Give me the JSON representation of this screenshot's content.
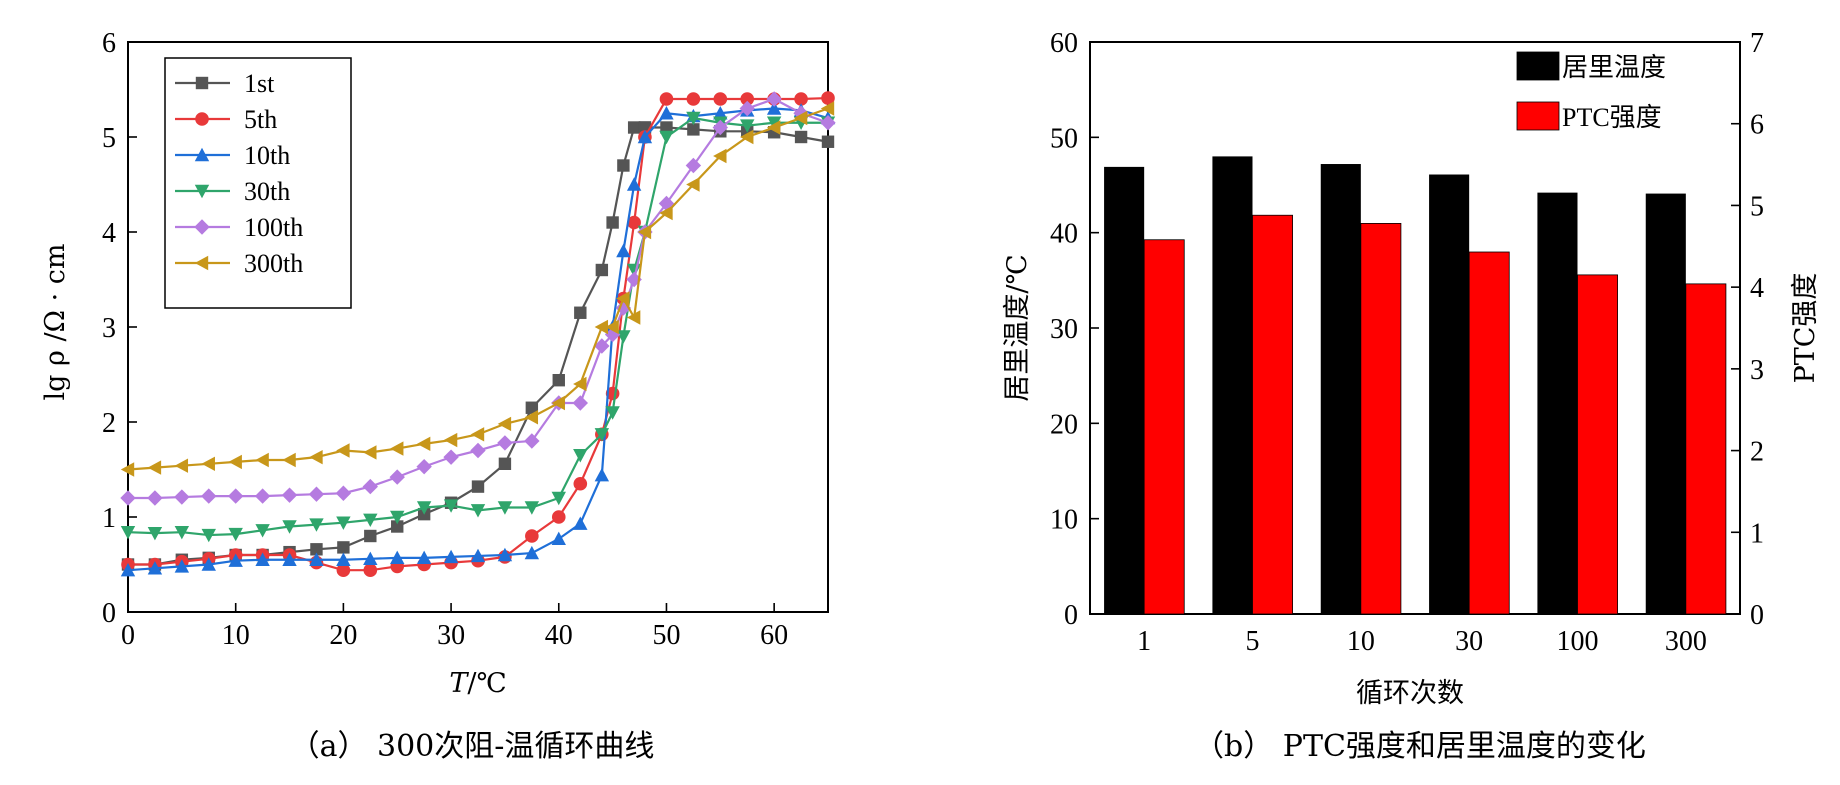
{
  "chart_data": [
    {
      "type": "line",
      "ylabel": "lg ρ /Ω · cm",
      "xlabel_var": "T",
      "xlabel_unit": "/℃",
      "xlim": [
        0,
        65
      ],
      "ylim": [
        0,
        6
      ],
      "xticks": [
        0,
        10,
        20,
        30,
        40,
        50,
        60
      ],
      "yticks": [
        0,
        1,
        2,
        3,
        4,
        5,
        6
      ],
      "legend_position": "top-left",
      "caption": "（a） 300次阻-温循环曲线",
      "series": [
        {
          "name": "1st",
          "color": "#555555",
          "marker": "square",
          "x": [
            0,
            2.5,
            5,
            7.5,
            10,
            12.5,
            15,
            17.5,
            20,
            22.5,
            25,
            27.5,
            30,
            32.5,
            35,
            37.5,
            40,
            42,
            44,
            45,
            46,
            47,
            48
          ],
          "y": [
            0.5,
            0.5,
            0.55,
            0.57,
            0.6,
            0.6,
            0.63,
            0.66,
            0.68,
            0.8,
            0.9,
            1.03,
            1.15,
            1.32,
            1.56,
            2.15,
            2.44,
            3.15,
            3.6,
            4.1,
            4.7,
            5.1,
            5.1
          ],
          "x2": [
            48,
            50,
            52.5,
            55,
            57.5,
            60,
            62.5,
            65
          ],
          "y2": [
            5.1,
            5.1,
            5.08,
            5.06,
            5.06,
            5.05,
            5.0,
            4.95
          ]
        },
        {
          "name": "5th",
          "color": "#e8393a",
          "marker": "circle",
          "x": [
            0,
            2.5,
            5,
            7.5,
            10,
            12.5,
            15,
            17.5,
            20,
            22.5,
            25,
            27.5,
            30,
            32.5,
            35,
            37.5,
            40,
            42,
            44,
            45,
            46,
            47,
            48,
            50,
            52.5,
            55,
            57.5,
            60,
            62.5,
            65
          ],
          "y": [
            0.5,
            0.5,
            0.53,
            0.56,
            0.6,
            0.6,
            0.6,
            0.52,
            0.44,
            0.44,
            0.48,
            0.5,
            0.52,
            0.54,
            0.58,
            0.8,
            1.0,
            1.35,
            1.87,
            2.3,
            3.3,
            4.1,
            5.0,
            5.4,
            5.4,
            5.4,
            5.4,
            5.4,
            5.4,
            5.41
          ]
        },
        {
          "name": "10th",
          "color": "#1f6fd8",
          "marker": "triangle-up",
          "x": [
            0,
            2.5,
            5,
            7.5,
            10,
            12.5,
            15,
            17.5,
            20,
            22.5,
            25,
            27.5,
            30,
            32.5,
            35,
            37.5,
            40,
            42,
            44,
            45,
            46,
            47,
            48,
            50,
            52.5,
            55,
            57.5,
            60,
            62.5,
            65
          ],
          "y": [
            0.44,
            0.46,
            0.48,
            0.5,
            0.54,
            0.55,
            0.55,
            0.55,
            0.55,
            0.56,
            0.57,
            0.57,
            0.58,
            0.59,
            0.6,
            0.62,
            0.77,
            0.93,
            1.44,
            3.0,
            3.8,
            4.5,
            5.0,
            5.25,
            5.22,
            5.25,
            5.28,
            5.3,
            5.28,
            5.2
          ]
        },
        {
          "name": "30th",
          "color": "#2fa56b",
          "marker": "triangle-down",
          "x": [
            0,
            2.5,
            5,
            7.5,
            10,
            12.5,
            15,
            17.5,
            20,
            22.5,
            25,
            27.5,
            30,
            32.5,
            35,
            37.5,
            40,
            42,
            44,
            45,
            46,
            47,
            48,
            50,
            52.5,
            55,
            57.5,
            60,
            62.5,
            65
          ],
          "y": [
            0.84,
            0.83,
            0.84,
            0.81,
            0.82,
            0.86,
            0.9,
            0.92,
            0.94,
            0.97,
            1.0,
            1.1,
            1.12,
            1.07,
            1.1,
            1.1,
            1.2,
            1.65,
            1.87,
            2.1,
            2.9,
            3.6,
            4.0,
            5.0,
            5.2,
            5.15,
            5.12,
            5.15,
            5.15,
            5.15
          ]
        },
        {
          "name": "100th",
          "color": "#b57be0",
          "marker": "diamond",
          "x": [
            0,
            2.5,
            5,
            7.5,
            10,
            12.5,
            15,
            17.5,
            20,
            22.5,
            25,
            27.5,
            30,
            32.5,
            35,
            37.5,
            40,
            42,
            44,
            45,
            46,
            47,
            48,
            50,
            52.5,
            55,
            57.5,
            60,
            62.5,
            65
          ],
          "y": [
            1.2,
            1.2,
            1.21,
            1.22,
            1.22,
            1.22,
            1.23,
            1.24,
            1.25,
            1.32,
            1.42,
            1.53,
            1.63,
            1.7,
            1.78,
            1.8,
            2.2,
            2.2,
            2.8,
            2.92,
            3.2,
            3.5,
            4.0,
            4.3,
            4.7,
            5.1,
            5.3,
            5.4,
            5.25,
            5.15
          ]
        },
        {
          "name": "300th",
          "color": "#c8971a",
          "marker": "triangle-left",
          "x": [
            0,
            2.5,
            5,
            7.5,
            10,
            12.5,
            15,
            17.5,
            20,
            22.5,
            25,
            27.5,
            30,
            32.5,
            35,
            37.5,
            40,
            42,
            44,
            45,
            46,
            47,
            48,
            50,
            52.5,
            55,
            57.5,
            60,
            62.5,
            65
          ],
          "y": [
            1.5,
            1.52,
            1.54,
            1.56,
            1.58,
            1.6,
            1.6,
            1.63,
            1.7,
            1.68,
            1.72,
            1.77,
            1.81,
            1.87,
            1.98,
            2.05,
            2.2,
            2.4,
            3.0,
            3.0,
            3.3,
            3.1,
            4.0,
            4.2,
            4.5,
            4.8,
            5.0,
            5.1,
            5.2,
            5.3
          ]
        }
      ]
    },
    {
      "type": "bar",
      "categories": [
        "1",
        "5",
        "10",
        "30",
        "100",
        "300"
      ],
      "xlabel": "循环次数",
      "ylabel": "居里温度/℃",
      "ylabel_right": "PTC强度",
      "ylim": [
        0,
        60
      ],
      "ylim_right": [
        0,
        7
      ],
      "yticks": [
        0,
        10,
        20,
        30,
        40,
        50,
        60
      ],
      "yticks_right": [
        0,
        1,
        2,
        3,
        4,
        5,
        6,
        7
      ],
      "legend_position": "top-right",
      "caption": "（b） PTC强度和居里温度的变化",
      "series": [
        {
          "name": "居里温度",
          "color": "#000000",
          "axis": "left",
          "values": [
            46.9,
            48.0,
            47.2,
            46.1,
            44.2,
            44.1
          ]
        },
        {
          "name": "PTC强度",
          "color": "#ff0000",
          "axis": "right",
          "values": [
            4.58,
            4.88,
            4.78,
            4.43,
            4.15,
            4.04
          ]
        }
      ]
    }
  ]
}
